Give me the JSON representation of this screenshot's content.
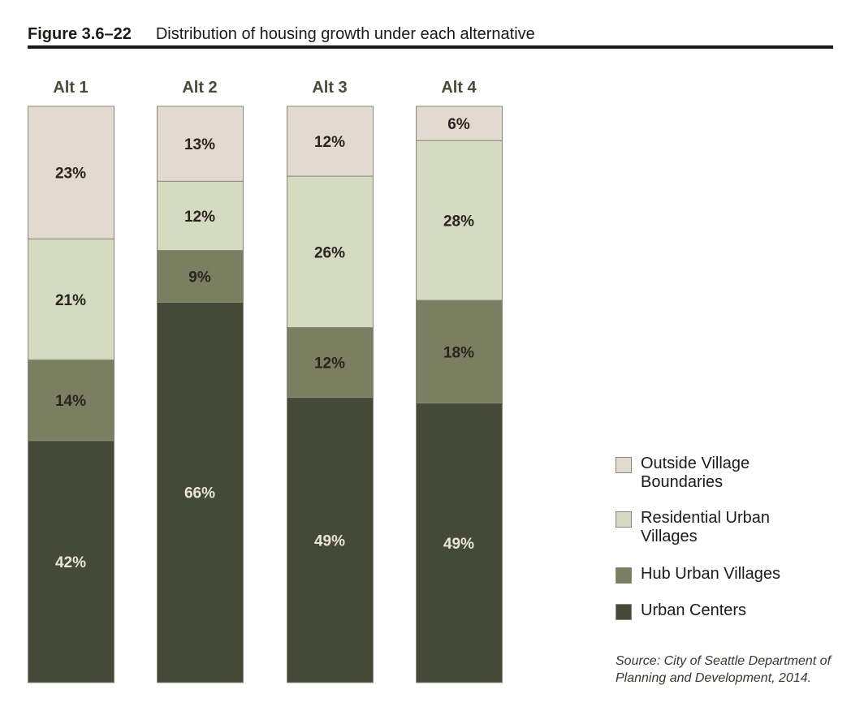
{
  "figure": {
    "number": "Figure 3.6–22",
    "title": "Distribution of housing growth under each alternative"
  },
  "chart_data": {
    "type": "bar",
    "stacked": true,
    "orientation": "vertical",
    "title": "Distribution of housing growth under each alternative",
    "categories": [
      "Alt 1",
      "Alt 2",
      "Alt 3",
      "Alt 4"
    ],
    "series": [
      {
        "name": "Urban Centers",
        "color": "#454937",
        "label_color": "#e9e5da",
        "values": [
          42,
          66,
          49,
          49
        ]
      },
      {
        "name": "Hub Urban Villages",
        "color": "#7b7f62",
        "label_color": "#2a231f",
        "values": [
          14,
          9,
          12,
          18
        ]
      },
      {
        "name": "Residential Urban Villages",
        "color": "#d5dbc1",
        "label_color": "#2a231f",
        "values": [
          21,
          12,
          26,
          28
        ]
      },
      {
        "name": "Outside Village Boundaries",
        "color": "#e2dace",
        "label_color": "#2a231f",
        "values": [
          23,
          13,
          12,
          6
        ]
      }
    ],
    "value_format": "{v}%",
    "ylim": [
      0,
      100
    ],
    "legend_placement": "bottom-right",
    "legend_order": [
      "Outside Village Boundaries",
      "Residential Urban Villages",
      "Hub Urban Villages",
      "Urban Centers"
    ],
    "legend_labels": [
      "Outside Village\nBoundaries",
      "Residential Urban\nVillages",
      "Hub Urban Villages",
      "Urban Centers"
    ],
    "grid": false
  },
  "source": "Source: City of Seattle Department of Planning and Development, 2014."
}
